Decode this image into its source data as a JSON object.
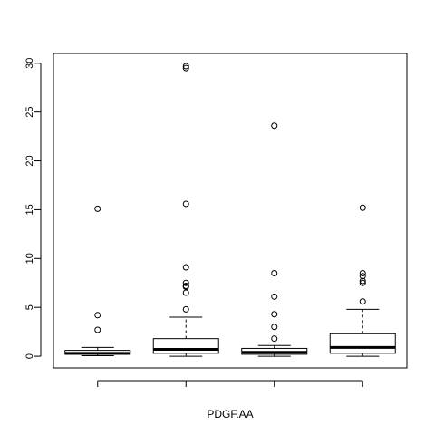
{
  "chart_data": {
    "type": "boxplot",
    "title": "",
    "xlabel": "PDGF.AA",
    "ylabel": "",
    "ylim": [
      -1.2,
      31.0
    ],
    "yticks": [
      0,
      5,
      10,
      15,
      20,
      25,
      30
    ],
    "ytick_labels": [
      "0",
      "5",
      "10",
      "15",
      "20",
      "25",
      "30"
    ],
    "grid": false,
    "x_tick_count": 4,
    "boxes": [
      {
        "whisker_low": 0.05,
        "q1": 0.2,
        "median": 0.3,
        "q3": 0.6,
        "whisker_high": 0.9,
        "outliers": [
          15.1,
          4.2,
          2.7
        ]
      },
      {
        "whisker_low": 0.0,
        "q1": 0.3,
        "median": 0.7,
        "q3": 1.8,
        "whisker_high": 4.0,
        "outliers": [
          29.7,
          29.5,
          15.6,
          9.1,
          7.5,
          7.2,
          7.1,
          6.5,
          4.8
        ]
      },
      {
        "whisker_low": 0.0,
        "q1": 0.2,
        "median": 0.4,
        "q3": 0.8,
        "whisker_high": 1.1,
        "outliers": [
          23.6,
          8.5,
          6.1,
          4.3,
          3.0,
          1.8
        ]
      },
      {
        "whisker_low": 0.0,
        "q1": 0.3,
        "median": 0.9,
        "q3": 2.3,
        "whisker_high": 4.8,
        "outliers": [
          15.2,
          8.5,
          8.2,
          7.7,
          7.5,
          5.6
        ]
      }
    ]
  }
}
